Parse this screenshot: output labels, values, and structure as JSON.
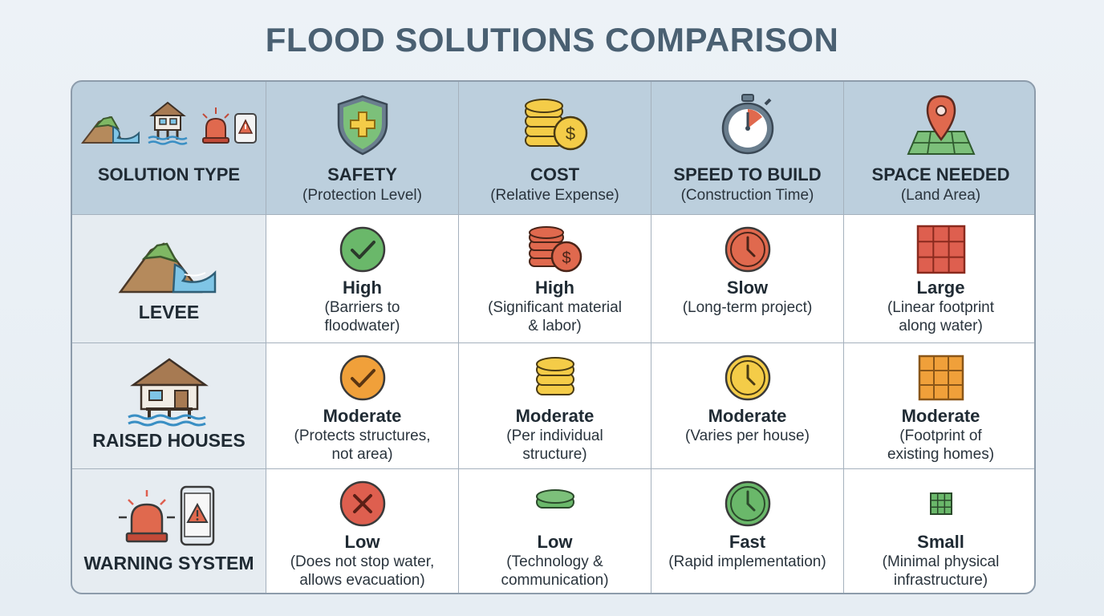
{
  "title": "FLOOD SOLUTIONS COMPARISON",
  "header": {
    "solution_type": "SOLUTION TYPE",
    "columns": [
      {
        "title": "SAFETY",
        "subtitle": "(Protection Level)",
        "icon": "shield-plus-icon"
      },
      {
        "title": "COST",
        "subtitle": "(Relative Expense)",
        "icon": "coin-stack-icon"
      },
      {
        "title": "SPEED TO BUILD",
        "subtitle": "(Construction Time)",
        "icon": "stopwatch-icon"
      },
      {
        "title": "SPACE NEEDED",
        "subtitle": "(Land Area)",
        "icon": "map-pin-icon"
      }
    ]
  },
  "rows": [
    {
      "label": "LEVEE",
      "icon": "levee-icon",
      "cells": [
        {
          "value": "High",
          "note_lines": [
            "(Barriers to",
            "floodwater)"
          ],
          "icon": "check-circle-icon"
        },
        {
          "value": "High",
          "note_lines": [
            "(Significant material",
            "& labor)"
          ],
          "icon": "large-coin-stack-icon"
        },
        {
          "value": "Slow",
          "note_lines": [
            "(Long-term project)"
          ],
          "icon": "clock-icon"
        },
        {
          "value": "Large",
          "note_lines": [
            "(Linear footprint",
            "along water)"
          ],
          "icon": "large-grid-icon"
        }
      ]
    },
    {
      "label": "RAISED HOUSES",
      "icon": "raised-house-icon",
      "cells": [
        {
          "value": "Moderate",
          "note_lines": [
            "(Protects structures,",
            "not area)"
          ],
          "icon": "check-circle-icon"
        },
        {
          "value": "Moderate",
          "note_lines": [
            "(Per individual",
            "structure)"
          ],
          "icon": "medium-coin-stack-icon"
        },
        {
          "value": "Moderate",
          "note_lines": [
            "(Varies per house)"
          ],
          "icon": "clock-icon"
        },
        {
          "value": "Moderate",
          "note_lines": [
            "(Footprint of",
            "existing homes)"
          ],
          "icon": "medium-grid-icon"
        }
      ]
    },
    {
      "label": "WARNING SYSTEM",
      "icon": "siren-phone-icon",
      "cells": [
        {
          "value": "Low",
          "note_lines": [
            "(Does not stop water,",
            "allows evacuation)"
          ],
          "icon": "x-circle-icon"
        },
        {
          "value": "Low",
          "note_lines": [
            "(Technology &",
            "communication)"
          ],
          "icon": "single-coin-icon"
        },
        {
          "value": "Fast",
          "note_lines": [
            "(Rapid implementation)"
          ],
          "icon": "clock-icon"
        },
        {
          "value": "Small",
          "note_lines": [
            "(Minimal physical",
            "infrastructure)"
          ],
          "icon": "small-grid-icon"
        }
      ]
    }
  ],
  "colors": {
    "title": "#4a6072",
    "header_bg": "#bccfdd",
    "row_header_bg": "#e6ecf1",
    "high": "#e0694e",
    "moderate": "#f0a03a",
    "low_green": "#6ab86a",
    "yellow": "#f4cc48",
    "red": "#de5f4f"
  }
}
